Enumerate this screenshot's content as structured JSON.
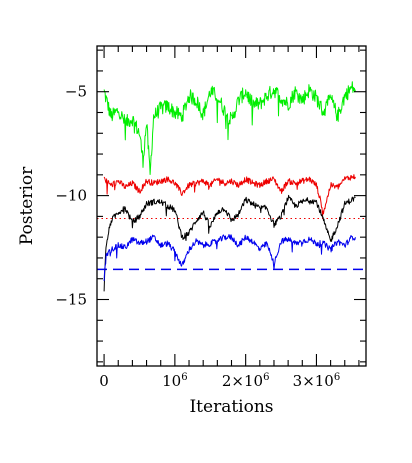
{
  "chart_data": {
    "type": "line",
    "xlabel": "Iterations",
    "ylabel": "Posterior",
    "xlim": [
      -100000,
      3700000
    ],
    "ylim": [
      -18.2,
      -2.8
    ],
    "x_ticks": [
      {
        "value": 0,
        "base": "0",
        "exp": ""
      },
      {
        "value": 1000000,
        "base": "10",
        "exp": "6"
      },
      {
        "value": 2000000,
        "base": "2×10",
        "exp": "6"
      },
      {
        "value": 3000000,
        "base": "3×10",
        "exp": "6"
      }
    ],
    "y_ticks": [
      {
        "value": -5,
        "label": "−5"
      },
      {
        "value": -10,
        "label": "−10"
      },
      {
        "value": -15,
        "label": "−15"
      }
    ],
    "grid": false,
    "series": [
      {
        "color": "#00ee00",
        "x": [
          0,
          100000,
          200000,
          300000,
          400000,
          500000,
          550000,
          600000,
          650000,
          700000,
          800000,
          900000,
          1000000,
          1100000,
          1200000,
          1300000,
          1400000,
          1500000,
          1600000,
          1700000,
          1800000,
          1900000,
          2000000,
          2100000,
          2200000,
          2300000,
          2400000,
          2500000,
          2600000,
          2700000,
          2800000,
          2900000,
          3000000,
          3100000,
          3200000,
          3300000,
          3400000,
          3500000,
          3550000
        ],
        "y": [
          -5.0,
          -6.2,
          -5.9,
          -6.5,
          -6.3,
          -7.0,
          -8.3,
          -6.5,
          -9.0,
          -6.2,
          -5.8,
          -5.7,
          -6.0,
          -6.2,
          -5.2,
          -5.4,
          -6.1,
          -5.0,
          -5.2,
          -5.9,
          -6.4,
          -5.4,
          -5.0,
          -5.6,
          -5.6,
          -5.2,
          -4.9,
          -5.3,
          -5.6,
          -5.0,
          -5.4,
          -4.9,
          -5.3,
          -6.0,
          -5.3,
          -6.2,
          -5.2,
          -4.8,
          -4.9
        ]
      },
      {
        "color": "#ee0000",
        "x": [
          0,
          100000,
          200000,
          300000,
          400000,
          500000,
          600000,
          700000,
          800000,
          900000,
          1000000,
          1100000,
          1200000,
          1300000,
          1400000,
          1500000,
          1600000,
          1700000,
          1800000,
          1900000,
          2000000,
          2100000,
          2200000,
          2300000,
          2400000,
          2500000,
          2600000,
          2700000,
          2800000,
          2900000,
          3000000,
          3100000,
          3200000,
          3300000,
          3400000,
          3500000,
          3550000
        ],
        "y": [
          -9.2,
          -9.5,
          -9.3,
          -9.6,
          -9.4,
          -9.8,
          -9.3,
          -9.4,
          -9.3,
          -9.2,
          -9.4,
          -9.9,
          -9.5,
          -9.4,
          -9.3,
          -9.5,
          -9.2,
          -9.4,
          -9.3,
          -9.5,
          -9.2,
          -9.4,
          -9.5,
          -9.3,
          -9.2,
          -9.8,
          -9.3,
          -9.4,
          -9.3,
          -9.2,
          -9.5,
          -10.8,
          -9.5,
          -9.6,
          -9.2,
          -9.1,
          -9.1
        ]
      },
      {
        "color": "#000000",
        "x": [
          0,
          20000,
          50000,
          100000,
          200000,
          300000,
          400000,
          500000,
          600000,
          700000,
          800000,
          900000,
          1000000,
          1100000,
          1200000,
          1300000,
          1400000,
          1500000,
          1600000,
          1700000,
          1800000,
          1900000,
          2000000,
          2100000,
          2200000,
          2300000,
          2400000,
          2500000,
          2600000,
          2700000,
          2800000,
          2900000,
          3000000,
          3100000,
          3200000,
          3300000,
          3400000,
          3500000,
          3550000
        ],
        "y": [
          -14.5,
          -12.8,
          -12.0,
          -11.2,
          -10.8,
          -10.6,
          -11.3,
          -11.0,
          -10.4,
          -10.3,
          -10.3,
          -10.5,
          -10.7,
          -12.0,
          -11.8,
          -11.2,
          -10.8,
          -11.5,
          -10.8,
          -10.6,
          -11.2,
          -10.9,
          -10.2,
          -10.4,
          -10.6,
          -10.6,
          -11.4,
          -11.0,
          -10.1,
          -10.5,
          -10.3,
          -10.2,
          -10.3,
          -11.2,
          -12.2,
          -11.4,
          -10.4,
          -10.2,
          -10.1
        ]
      },
      {
        "color": "#0000ee",
        "x": [
          0,
          30000,
          100000,
          200000,
          300000,
          400000,
          500000,
          600000,
          700000,
          800000,
          900000,
          1000000,
          1100000,
          1200000,
          1300000,
          1400000,
          1500000,
          1600000,
          1700000,
          1800000,
          1900000,
          2000000,
          2100000,
          2200000,
          2300000,
          2400000,
          2500000,
          2600000,
          2700000,
          2800000,
          2900000,
          3000000,
          3100000,
          3200000,
          3300000,
          3400000,
          3500000,
          3550000
        ],
        "y": [
          -14.0,
          -12.9,
          -12.6,
          -12.4,
          -12.5,
          -12.1,
          -12.3,
          -12.2,
          -12.0,
          -12.4,
          -12.3,
          -12.7,
          -13.4,
          -12.6,
          -12.2,
          -12.4,
          -12.3,
          -12.2,
          -12.0,
          -12.0,
          -12.4,
          -12.0,
          -12.2,
          -12.6,
          -12.3,
          -13.3,
          -12.2,
          -12.1,
          -12.3,
          -12.2,
          -12.1,
          -12.3,
          -12.3,
          -12.6,
          -12.2,
          -12.4,
          -12.0,
          -12.0
        ]
      }
    ],
    "reference_lines": [
      {
        "y": -11.1,
        "color": "#ee0000",
        "style": "dotted"
      },
      {
        "y": -13.55,
        "color": "#0000ee",
        "style": "dashed"
      }
    ]
  }
}
